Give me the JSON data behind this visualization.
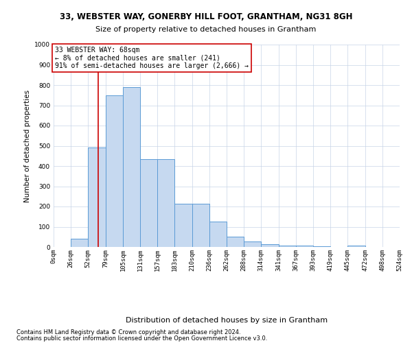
{
  "title_line1": "33, WEBSTER WAY, GONERBY HILL FOOT, GRANTHAM, NG31 8GH",
  "title_line2": "Size of property relative to detached houses in Grantham",
  "xlabel": "Distribution of detached houses by size in Grantham",
  "ylabel": "Number of detached properties",
  "bin_edges": [
    0,
    26,
    52,
    79,
    105,
    131,
    157,
    183,
    210,
    236,
    262,
    288,
    314,
    341,
    367,
    393,
    419,
    445,
    472,
    498,
    524
  ],
  "bar_heights": [
    0,
    40,
    490,
    750,
    790,
    435,
    435,
    215,
    215,
    125,
    50,
    27,
    12,
    8,
    8,
    5,
    0,
    8,
    0,
    0
  ],
  "bar_color": "#c6d9f0",
  "bar_edge_color": "#5b9bd5",
  "property_size": 68,
  "red_line_color": "#cc0000",
  "annotation_text": "33 WEBSTER WAY: 68sqm\n← 8% of detached houses are smaller (241)\n91% of semi-detached houses are larger (2,666) →",
  "annotation_box_color": "#ffffff",
  "annotation_box_edge": "#cc0000",
  "ylim": [
    0,
    1000
  ],
  "yticks": [
    0,
    100,
    200,
    300,
    400,
    500,
    600,
    700,
    800,
    900,
    1000
  ],
  "footer_line1": "Contains HM Land Registry data © Crown copyright and database right 2024.",
  "footer_line2": "Contains public sector information licensed under the Open Government Licence v3.0.",
  "background_color": "#ffffff",
  "grid_color": "#c8d4e8",
  "title_fontsize": 8.5,
  "subtitle_fontsize": 8,
  "ylabel_fontsize": 7.5,
  "xlabel_fontsize": 8,
  "tick_fontsize": 6.5,
  "footer_fontsize": 6,
  "annot_fontsize": 7
}
